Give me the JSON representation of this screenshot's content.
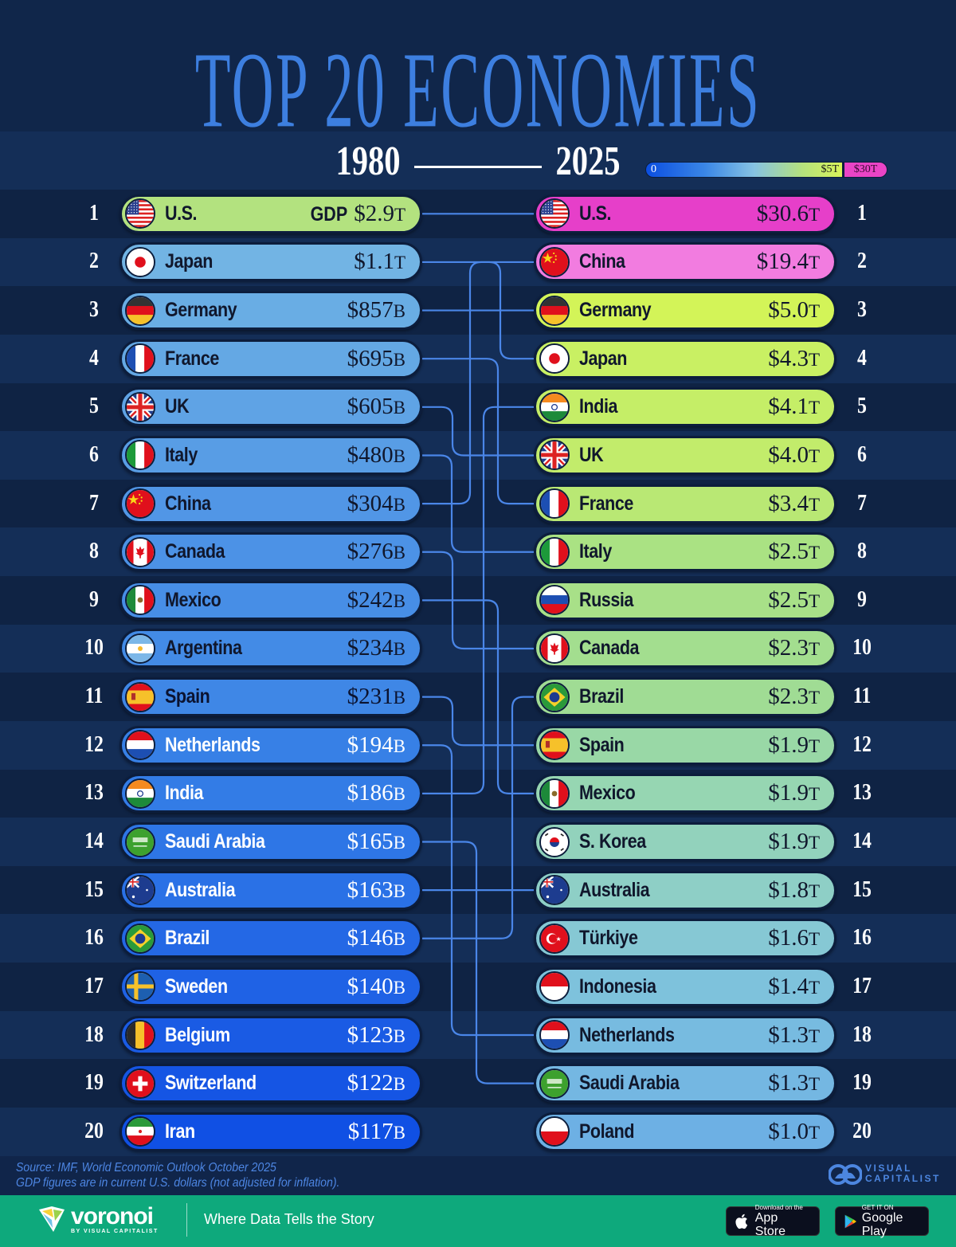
{
  "header": {
    "title": "TOP 20 ECONOMIES",
    "year_start": "1980",
    "year_end": "2025",
    "legend": {
      "min_label": "0",
      "mid_label": "$5T",
      "max_label": "$30T"
    },
    "gdp_label": "GDP"
  },
  "colors": {
    "title": "#3d7fe0",
    "background": "#10254a",
    "row_dark": "#0f2344",
    "row_light": "#142e57",
    "connector": "#4a86e8",
    "max_pink": "#ea44c6",
    "footer_green": "#0ea97c"
  },
  "left": [
    {
      "rank": "1",
      "name": "U.S.",
      "value": "$2.9",
      "unit": "T",
      "flag": "us-flag-icon",
      "bg": "#b3e27f",
      "fg": "#10172c"
    },
    {
      "rank": "2",
      "name": "Japan",
      "value": "$1.1",
      "unit": "T",
      "flag": "japan-flag-icon",
      "bg": "#72b4e4",
      "fg": "#10172c"
    },
    {
      "rank": "3",
      "name": "Germany",
      "value": "$857",
      "unit": "B",
      "flag": "germany-flag-icon",
      "bg": "#69ade4",
      "fg": "#10172c"
    },
    {
      "rank": "4",
      "name": "France",
      "value": "$695",
      "unit": "B",
      "flag": "france-flag-icon",
      "bg": "#64a8e4",
      "fg": "#10172c"
    },
    {
      "rank": "5",
      "name": "UK",
      "value": "$605",
      "unit": "B",
      "flag": "uk-flag-icon",
      "bg": "#5fa3e5",
      "fg": "#10172c"
    },
    {
      "rank": "6",
      "name": "Italy",
      "value": "$480",
      "unit": "B",
      "flag": "italy-flag-icon",
      "bg": "#589de5",
      "fg": "#10172c"
    },
    {
      "rank": "7",
      "name": "China",
      "value": "$304",
      "unit": "B",
      "flag": "china-flag-icon",
      "bg": "#5196e6",
      "fg": "#10172c"
    },
    {
      "rank": "8",
      "name": "Canada",
      "value": "$276",
      "unit": "B",
      "flag": "canada-flag-icon",
      "bg": "#4c92e6",
      "fg": "#10172c"
    },
    {
      "rank": "9",
      "name": "Mexico",
      "value": "$242",
      "unit": "B",
      "flag": "mexico-flag-icon",
      "bg": "#478ee6",
      "fg": "#10172c"
    },
    {
      "rank": "10",
      "name": "Argentina",
      "value": "$234",
      "unit": "B",
      "flag": "argentina-flag-icon",
      "bg": "#438be6",
      "fg": "#10172c"
    },
    {
      "rank": "11",
      "name": "Spain",
      "value": "$231",
      "unit": "B",
      "flag": "spain-flag-icon",
      "bg": "#3f87e6",
      "fg": "#0b1330"
    },
    {
      "rank": "12",
      "name": "Netherlands",
      "value": "$194",
      "unit": "B",
      "flag": "netherlands-flag-icon",
      "bg": "#3780e6",
      "fg": "#ffffff"
    },
    {
      "rank": "13",
      "name": "India",
      "value": "$186",
      "unit": "B",
      "flag": "india-flag-icon",
      "bg": "#337ce6",
      "fg": "#ffffff"
    },
    {
      "rank": "14",
      "name": "Saudi Arabia",
      "value": "$165",
      "unit": "B",
      "flag": "saudi-arabia-flag-icon",
      "bg": "#2e76e6",
      "fg": "#ffffff"
    },
    {
      "rank": "15",
      "name": "Australia",
      "value": "$163",
      "unit": "B",
      "flag": "australia-flag-icon",
      "bg": "#2a71e6",
      "fg": "#ffffff"
    },
    {
      "rank": "16",
      "name": "Brazil",
      "value": "$146",
      "unit": "B",
      "flag": "brazil-flag-icon",
      "bg": "#2468e5",
      "fg": "#ffffff"
    },
    {
      "rank": "17",
      "name": "Sweden",
      "value": "$140",
      "unit": "B",
      "flag": "sweden-flag-icon",
      "bg": "#1f62e5",
      "fg": "#ffffff"
    },
    {
      "rank": "18",
      "name": "Belgium",
      "value": "$123",
      "unit": "B",
      "flag": "belgium-flag-icon",
      "bg": "#1a5be4",
      "fg": "#ffffff"
    },
    {
      "rank": "19",
      "name": "Switzerland",
      "value": "$122",
      "unit": "B",
      "flag": "switzerland-flag-icon",
      "bg": "#1555e4",
      "fg": "#ffffff"
    },
    {
      "rank": "20",
      "name": "Iran",
      "value": "$117",
      "unit": "B",
      "flag": "iran-flag-icon",
      "bg": "#1050e4",
      "fg": "#ffffff"
    }
  ],
  "right": [
    {
      "rank": "1",
      "name": "U.S.",
      "value": "$30.6",
      "unit": "T",
      "flag": "us-flag-icon",
      "bg": "#e63fc9",
      "fg": "#10172c"
    },
    {
      "rank": "2",
      "name": "China",
      "value": "$19.4",
      "unit": "T",
      "flag": "china-flag-icon",
      "bg": "#f27ce0",
      "fg": "#10172c"
    },
    {
      "rank": "3",
      "name": "Germany",
      "value": "$5.0",
      "unit": "T",
      "flag": "germany-flag-icon",
      "bg": "#d3f458",
      "fg": "#10172c"
    },
    {
      "rank": "4",
      "name": "Japan",
      "value": "$4.3",
      "unit": "T",
      "flag": "japan-flag-icon",
      "bg": "#c9f063",
      "fg": "#10172c"
    },
    {
      "rank": "5",
      "name": "India",
      "value": "$4.1",
      "unit": "T",
      "flag": "india-flag-icon",
      "bg": "#c5ee67",
      "fg": "#10172c"
    },
    {
      "rank": "6",
      "name": "UK",
      "value": "$4.0",
      "unit": "T",
      "flag": "uk-flag-icon",
      "bg": "#c2ec6b",
      "fg": "#10172c"
    },
    {
      "rank": "7",
      "name": "France",
      "value": "$3.4",
      "unit": "T",
      "flag": "france-flag-icon",
      "bg": "#b9e874",
      "fg": "#10172c"
    },
    {
      "rank": "8",
      "name": "Italy",
      "value": "$2.5",
      "unit": "T",
      "flag": "italy-flag-icon",
      "bg": "#aae283",
      "fg": "#10172c"
    },
    {
      "rank": "9",
      "name": "Russia",
      "value": "$2.5",
      "unit": "T",
      "flag": "russia-flag-icon",
      "bg": "#a8e088",
      "fg": "#10172c"
    },
    {
      "rank": "10",
      "name": "Canada",
      "value": "$2.3",
      "unit": "T",
      "flag": "canada-flag-icon",
      "bg": "#a3de8f",
      "fg": "#10172c"
    },
    {
      "rank": "11",
      "name": "Brazil",
      "value": "$2.3",
      "unit": "T",
      "flag": "brazil-flag-icon",
      "bg": "#a0dc94",
      "fg": "#10172c"
    },
    {
      "rank": "12",
      "name": "Spain",
      "value": "$1.9",
      "unit": "T",
      "flag": "spain-flag-icon",
      "bg": "#99d8a6",
      "fg": "#10172c"
    },
    {
      "rank": "13",
      "name": "Mexico",
      "value": "$1.9",
      "unit": "T",
      "flag": "mexico-flag-icon",
      "bg": "#96d6b2",
      "fg": "#10172c"
    },
    {
      "rank": "14",
      "name": "S. Korea",
      "value": "$1.9",
      "unit": "T",
      "flag": "south-korea-flag-icon",
      "bg": "#92d2bc",
      "fg": "#10172c"
    },
    {
      "rank": "15",
      "name": "Australia",
      "value": "$1.8",
      "unit": "T",
      "flag": "australia-flag-icon",
      "bg": "#8ecfc6",
      "fg": "#10172c"
    },
    {
      "rank": "16",
      "name": "Türkiye",
      "value": "$1.6",
      "unit": "T",
      "flag": "turkiye-flag-icon",
      "bg": "#86c8d4",
      "fg": "#10172c"
    },
    {
      "rank": "17",
      "name": "Indonesia",
      "value": "$1.4",
      "unit": "T",
      "flag": "indonesia-flag-icon",
      "bg": "#7ec2dc",
      "fg": "#10172c"
    },
    {
      "rank": "18",
      "name": "Netherlands",
      "value": "$1.3",
      "unit": "T",
      "flag": "netherlands-flag-icon",
      "bg": "#77bbe0",
      "fg": "#10172c"
    },
    {
      "rank": "19",
      "name": "Saudi Arabia",
      "value": "$1.3",
      "unit": "T",
      "flag": "saudi-arabia-flag-icon",
      "bg": "#74b7e2",
      "fg": "#10172c"
    },
    {
      "rank": "20",
      "name": "Poland",
      "value": "$1.0",
      "unit": "T",
      "flag": "poland-flag-icon",
      "bg": "#6db0e4",
      "fg": "#10172c"
    }
  ],
  "connections": [
    [
      1,
      1
    ],
    [
      2,
      4
    ],
    [
      3,
      3
    ],
    [
      4,
      7
    ],
    [
      5,
      6
    ],
    [
      6,
      8
    ],
    [
      7,
      2
    ],
    [
      8,
      10
    ],
    [
      9,
      13
    ],
    [
      11,
      12
    ],
    [
      12,
      18
    ],
    [
      13,
      5
    ],
    [
      14,
      19
    ],
    [
      15,
      15
    ],
    [
      16,
      11
    ]
  ],
  "footer": {
    "source": "Source: IMF, World Economic Outlook October 2025",
    "note": "GDP figures are in current U.S. dollars (not adjusted for inflation).",
    "vc_line1": "VISUAL",
    "vc_line2": "CAPITALIST",
    "brand": "voronoi",
    "brand_sub": "BY VISUAL CAPITALIST",
    "tagline": "Where Data Tells the Story",
    "appstore_small": "Download on the",
    "appstore_big": "App Store",
    "googleplay_small": "GET IT ON",
    "googleplay_big": "Google Play"
  },
  "chart_data": {
    "type": "table",
    "title": "Top 20 Economies, 1980 vs 2025",
    "subtitle": "GDP in current U.S. dollars (not adjusted for inflation)",
    "legend": {
      "scale": [
        "0",
        "$5T",
        "$30T"
      ],
      "position": "top-right"
    },
    "series": [
      {
        "name": "1980",
        "categories": [
          "U.S.",
          "Japan",
          "Germany",
          "France",
          "UK",
          "Italy",
          "China",
          "Canada",
          "Mexico",
          "Argentina",
          "Spain",
          "Netherlands",
          "India",
          "Saudi Arabia",
          "Australia",
          "Brazil",
          "Sweden",
          "Belgium",
          "Switzerland",
          "Iran"
        ],
        "values_usd_billions": [
          2900,
          1100,
          857,
          695,
          605,
          480,
          304,
          276,
          242,
          234,
          231,
          194,
          186,
          165,
          163,
          146,
          140,
          123,
          122,
          117
        ]
      },
      {
        "name": "2025",
        "categories": [
          "U.S.",
          "China",
          "Germany",
          "Japan",
          "India",
          "UK",
          "France",
          "Italy",
          "Russia",
          "Canada",
          "Brazil",
          "Spain",
          "Mexico",
          "S. Korea",
          "Australia",
          "Türkiye",
          "Indonesia",
          "Netherlands",
          "Saudi Arabia",
          "Poland"
        ],
        "values_usd_trillions": [
          30.6,
          19.4,
          5.0,
          4.3,
          4.1,
          4.0,
          3.4,
          2.5,
          2.5,
          2.3,
          2.3,
          1.9,
          1.9,
          1.9,
          1.8,
          1.6,
          1.4,
          1.3,
          1.3,
          1.0
        ]
      }
    ],
    "source": "IMF, World Economic Outlook October 2025"
  }
}
